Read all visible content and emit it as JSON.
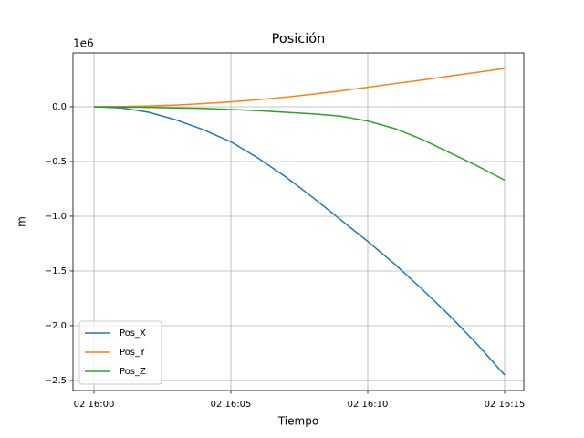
{
  "chart_data": {
    "type": "line",
    "title": "Posición",
    "x_label": "Tiempo",
    "y_label": "m",
    "y_offset_label": "1e6",
    "x": [
      "02 16:00",
      "02 16:01",
      "02 16:02",
      "02 16:03",
      "02 16:04",
      "02 16:05",
      "02 16:06",
      "02 16:07",
      "02 16:08",
      "02 16:09",
      "02 16:10",
      "02 16:11",
      "02 16:12",
      "02 16:13",
      "02 16:14",
      "02 16:15"
    ],
    "series": [
      {
        "name": "Pos_X",
        "color": "#1f77b4",
        "values": [
          0,
          -0.01,
          -0.05,
          -0.12,
          -0.21,
          -0.32,
          -0.47,
          -0.64,
          -0.83,
          -1.03,
          -1.23,
          -1.44,
          -1.67,
          -1.91,
          -2.17,
          -2.45
        ]
      },
      {
        "name": "Pos_Y",
        "color": "#ff7f0e",
        "values": [
          0,
          0.002,
          0.007,
          0.016,
          0.029,
          0.045,
          0.065,
          0.088,
          0.115,
          0.145,
          0.178,
          0.212,
          0.245,
          0.28,
          0.315,
          0.35
        ]
      },
      {
        "name": "Pos_Z",
        "color": "#2ca02c",
        "values": [
          0,
          -0.002,
          -0.005,
          -0.01,
          -0.015,
          -0.025,
          -0.035,
          -0.05,
          -0.065,
          -0.085,
          -0.13,
          -0.2,
          -0.3,
          -0.42,
          -0.54,
          -0.67
        ]
      }
    ],
    "xlim": [
      "02 15:59:14",
      "02 16:15:42"
    ],
    "xticks": [
      "02 16:00",
      "02 16:05",
      "02 16:10",
      "02 16:15"
    ],
    "ylim": [
      -2.592,
      0.4917
    ],
    "yticks": [
      {
        "value": -2.5,
        "label": "−2.5"
      },
      {
        "value": -2.0,
        "label": "−2.0"
      },
      {
        "value": -1.5,
        "label": "−1.5"
      },
      {
        "value": -1.0,
        "label": "−1.0"
      },
      {
        "value": -0.5,
        "label": "−0.5"
      },
      {
        "value": 0,
        "label": "0.0"
      }
    ],
    "grid": true,
    "legend": "lower left"
  }
}
